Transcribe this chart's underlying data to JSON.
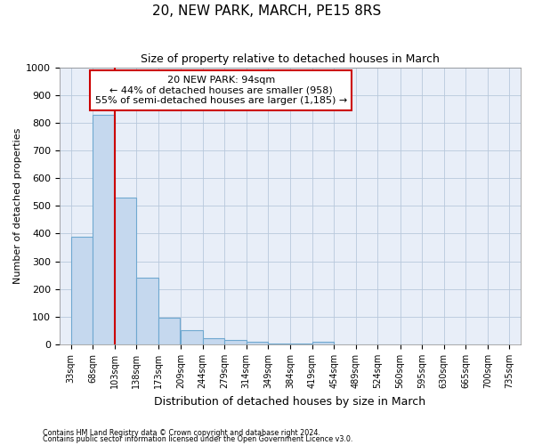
{
  "title": "20, NEW PARK, MARCH, PE15 8RS",
  "subtitle": "Size of property relative to detached houses in March",
  "xlabel": "Distribution of detached houses by size in March",
  "ylabel": "Number of detached properties",
  "bar_edges": [
    33,
    68,
    103,
    138,
    173,
    209,
    244,
    279,
    314,
    349,
    384,
    419,
    454,
    489,
    524,
    560,
    595,
    630,
    665,
    700,
    735
  ],
  "bar_heights": [
    390,
    830,
    530,
    240,
    95,
    53,
    22,
    17,
    10,
    5,
    3,
    10,
    0,
    0,
    0,
    0,
    0,
    0,
    0,
    0
  ],
  "bar_color": "#c5d8ee",
  "bar_edge_color": "#6fa8d0",
  "property_label": "20 NEW PARK: 94sqm",
  "annotation_line1": "← 44% of detached houses are smaller (958)",
  "annotation_line2": "55% of semi-detached houses are larger (1,185) →",
  "vline_color": "#cc0000",
  "vline_x": 103,
  "annotation_box_edge": "#cc0000",
  "ylim": [
    0,
    1000
  ],
  "xlim_left": 15,
  "xlim_right": 753,
  "footnote1": "Contains HM Land Registry data © Crown copyright and database right 2024.",
  "footnote2": "Contains public sector information licensed under the Open Government Licence v3.0.",
  "plot_background": "#e8eef8"
}
